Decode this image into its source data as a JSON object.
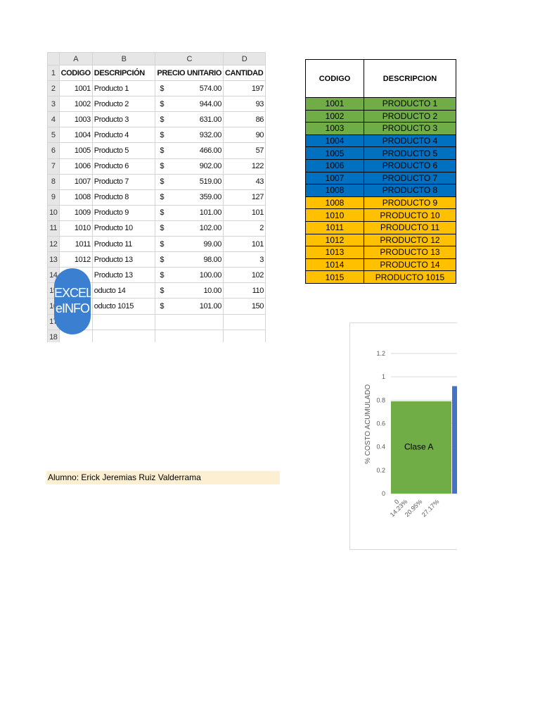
{
  "sheet": {
    "columns": [
      "A",
      "B",
      "C",
      "D"
    ],
    "headers": {
      "codigo": "CODIGO",
      "descripcion": "DESCRIPCIÓN",
      "precio": "PRECIO UNITARIO",
      "cantidad": "CANTIDAD"
    },
    "currency": "$",
    "rows": [
      {
        "n": "2",
        "code": "1001",
        "desc": "Producto 1",
        "price": "574.00",
        "qty": "197"
      },
      {
        "n": "3",
        "code": "1002",
        "desc": "Producto 2",
        "price": "944.00",
        "qty": "93"
      },
      {
        "n": "4",
        "code": "1003",
        "desc": "Producto 3",
        "price": "631.00",
        "qty": "86"
      },
      {
        "n": "5",
        "code": "1004",
        "desc": "Producto 4",
        "price": "932.00",
        "qty": "90"
      },
      {
        "n": "6",
        "code": "1005",
        "desc": "Producto 5",
        "price": "466.00",
        "qty": "57"
      },
      {
        "n": "7",
        "code": "1006",
        "desc": "Producto 6",
        "price": "902.00",
        "qty": "122"
      },
      {
        "n": "8",
        "code": "1007",
        "desc": "Producto 7",
        "price": "519.00",
        "qty": "43"
      },
      {
        "n": "9",
        "code": "1008",
        "desc": "Producto 8",
        "price": "359.00",
        "qty": "127"
      },
      {
        "n": "10",
        "code": "1009",
        "desc": "Producto 9",
        "price": "101.00",
        "qty": "101"
      },
      {
        "n": "11",
        "code": "1010",
        "desc": "Producto 10",
        "price": "102.00",
        "qty": "2"
      },
      {
        "n": "12",
        "code": "1011",
        "desc": "Producto 11",
        "price": "99.00",
        "qty": "101"
      },
      {
        "n": "13",
        "code": "1012",
        "desc": "Producto 13",
        "price": "98.00",
        "qty": "3"
      },
      {
        "n": "14",
        "code": "",
        "desc": "Producto 13",
        "price": "100.00",
        "qty": "102"
      },
      {
        "n": "15",
        "code": "",
        "desc": "oducto 14",
        "price": "10.00",
        "qty": "110"
      },
      {
        "n": "16",
        "code": "",
        "desc": "oducto 1015",
        "price": "101.00",
        "qty": "150"
      }
    ],
    "empty_rows": [
      "17",
      "18"
    ],
    "logo": {
      "line1": "EXCEL",
      "line2": "eINFO",
      "color": "#3b7fd0"
    }
  },
  "codes_table": {
    "headers": [
      "CODIGO",
      "DESCRIPCION"
    ],
    "colors": {
      "green": "#70ad47",
      "blue": "#0070c0",
      "yellow": "#ffc000"
    },
    "rows": [
      {
        "code": "1001",
        "desc": "PRODUCTO 1",
        "color": "green"
      },
      {
        "code": "1002",
        "desc": "PRODUCTO 2",
        "color": "green"
      },
      {
        "code": "1003",
        "desc": "PRODUCTO 3",
        "color": "green"
      },
      {
        "code": "1004",
        "desc": "PRODUCTO 4",
        "color": "blue"
      },
      {
        "code": "1005",
        "desc": "PRODUCTO 5",
        "color": "blue"
      },
      {
        "code": "1006",
        "desc": "PRODUCTO 6",
        "color": "blue"
      },
      {
        "code": "1007",
        "desc": "PRODUCTO 7",
        "color": "blue"
      },
      {
        "code": "1008",
        "desc": "PRODUCTO 8",
        "color": "blue"
      },
      {
        "code": "1008",
        "desc": "PRODUCTO 9",
        "color": "yellow"
      },
      {
        "code": "1010",
        "desc": "PRODUCTO 10",
        "color": "yellow"
      },
      {
        "code": "1011",
        "desc": "PRODUCTO 11",
        "color": "yellow"
      },
      {
        "code": "1012",
        "desc": "PRODUCTO 12",
        "color": "yellow"
      },
      {
        "code": "1013",
        "desc": "PRODUCTO 13",
        "color": "yellow"
      },
      {
        "code": "1014",
        "desc": "PRODUCTO 14",
        "color": "yellow"
      },
      {
        "code": "1015",
        "desc": "PRODUCTO 1015",
        "color": "yellow"
      }
    ]
  },
  "alumno": "Alumno: Erick Jeremias Ruiz Valderrama",
  "chart_data": {
    "type": "bar",
    "ylabel": "% COSTO ACUMULADO",
    "yticks": [
      "0",
      "0.2",
      "0.4",
      "0.6",
      "0.8",
      "1",
      "1.2"
    ],
    "ylim": [
      0,
      1.2
    ],
    "x_tick_labels": [
      "0",
      "14.23%",
      "20.95%",
      "27.17%"
    ],
    "grid": true,
    "series": [
      {
        "values": [
          0.79
        ],
        "color": "#70ad47",
        "label": "Clase A"
      },
      {
        "values": [
          0.92
        ],
        "color": "#4472c4"
      }
    ]
  }
}
